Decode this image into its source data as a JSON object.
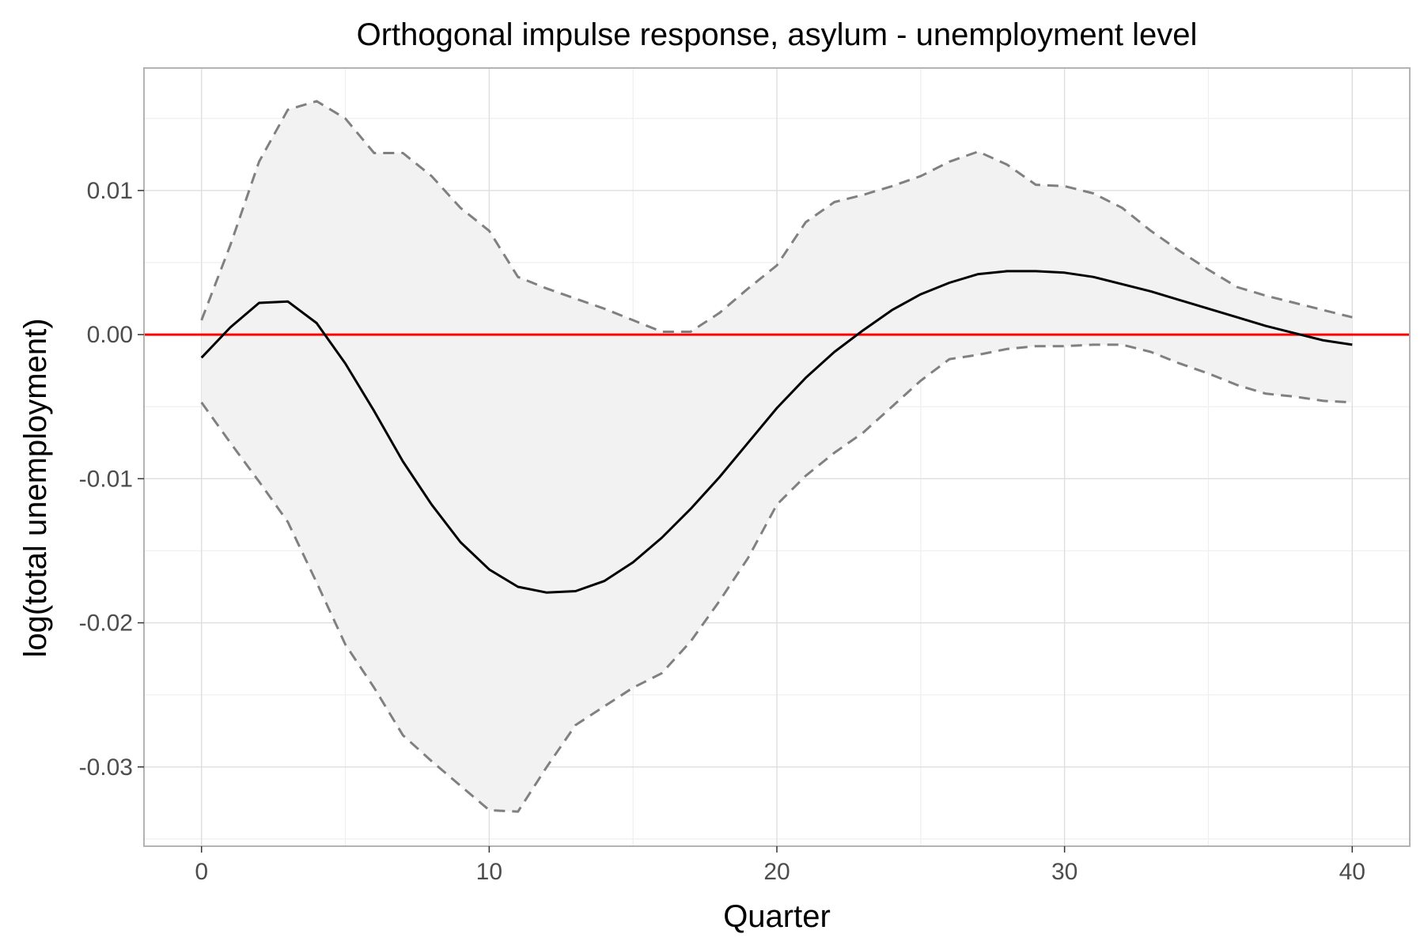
{
  "chart_data": {
    "type": "line",
    "title": "Orthogonal impulse response, asylum - unemployment level",
    "xlabel": "Quarter",
    "ylabel": "log(total unemployment)",
    "xlim": [
      -2,
      42
    ],
    "ylim": [
      -0.0355,
      0.0185
    ],
    "x_ticks": [
      0,
      10,
      20,
      30,
      40
    ],
    "x_tick_labels": [
      "0",
      "10",
      "20",
      "30",
      "40"
    ],
    "y_ticks": [
      0.01,
      0.0,
      -0.01,
      -0.02,
      -0.03
    ],
    "y_tick_labels": [
      "0.01",
      "0.00",
      "-0.01",
      "-0.02",
      "-0.03"
    ],
    "grid": true,
    "x": [
      0,
      1,
      2,
      3,
      4,
      5,
      6,
      7,
      8,
      9,
      10,
      11,
      12,
      13,
      14,
      15,
      16,
      17,
      18,
      19,
      20,
      21,
      22,
      23,
      24,
      25,
      26,
      27,
      28,
      29,
      30,
      31,
      32,
      33,
      34,
      35,
      36,
      37,
      38,
      39,
      40
    ],
    "series": [
      {
        "values": [
          -0.0016,
          0.0005,
          0.0022,
          0.0023,
          0.0008,
          -0.002,
          -0.0053,
          -0.0088,
          -0.0118,
          -0.0144,
          -0.0163,
          -0.0175,
          -0.0179,
          -0.0178,
          -0.0171,
          -0.0158,
          -0.0141,
          -0.0121,
          -0.0099,
          -0.0075,
          -0.0051,
          -0.003,
          -0.0012,
          0.0003,
          0.0017,
          0.0028,
          0.0036,
          0.0042,
          0.0044,
          0.0044,
          0.0043,
          0.004,
          0.0035,
          0.003,
          0.0024,
          0.0018,
          0.0012,
          0.0006,
          0.0001,
          -0.0004,
          -0.0007
        ],
        "color": "#000000",
        "style": "solid"
      },
      {
        "values": [
          0.001,
          0.0062,
          0.012,
          0.0156,
          0.0162,
          0.015,
          0.0126,
          0.0126,
          0.011,
          0.0088,
          0.0072,
          0.004,
          0.0032,
          0.0025,
          0.0018,
          0.001,
          0.0002,
          0.0002,
          0.0015,
          0.0032,
          0.0048,
          0.0078,
          0.0092,
          0.0097,
          0.0103,
          0.011,
          0.012,
          0.0127,
          0.0118,
          0.0104,
          0.0103,
          0.0098,
          0.0088,
          0.0072,
          0.0058,
          0.0045,
          0.0033,
          0.0027,
          0.0022,
          0.0017,
          0.0012
        ],
        "color": "#808080",
        "style": "dashed"
      },
      {
        "values": [
          -0.0047,
          -0.0075,
          -0.0102,
          -0.013,
          -0.0172,
          -0.0215,
          -0.0245,
          -0.0278,
          -0.0296,
          -0.0313,
          -0.033,
          -0.0331,
          -0.03,
          -0.0271,
          -0.0258,
          -0.0245,
          -0.0235,
          -0.0213,
          -0.0185,
          -0.0155,
          -0.0118,
          -0.0098,
          -0.0082,
          -0.0068,
          -0.005,
          -0.0032,
          -0.0017,
          -0.0014,
          -0.001,
          -0.0008,
          -0.0008,
          -0.0007,
          -0.0007,
          -0.0012,
          -0.002,
          -0.0027,
          -0.0035,
          -0.0041,
          -0.0043,
          -0.0046,
          -0.0047
        ],
        "color": "#808080",
        "style": "dashed"
      }
    ],
    "band_fill": "#f2f2f2",
    "reference_line": {
      "y": 0,
      "color": "#ff0000"
    },
    "colors": {
      "panel_border": "#b3b3b3",
      "grid_major": "#dedede",
      "grid_minor": "#efefef"
    }
  }
}
